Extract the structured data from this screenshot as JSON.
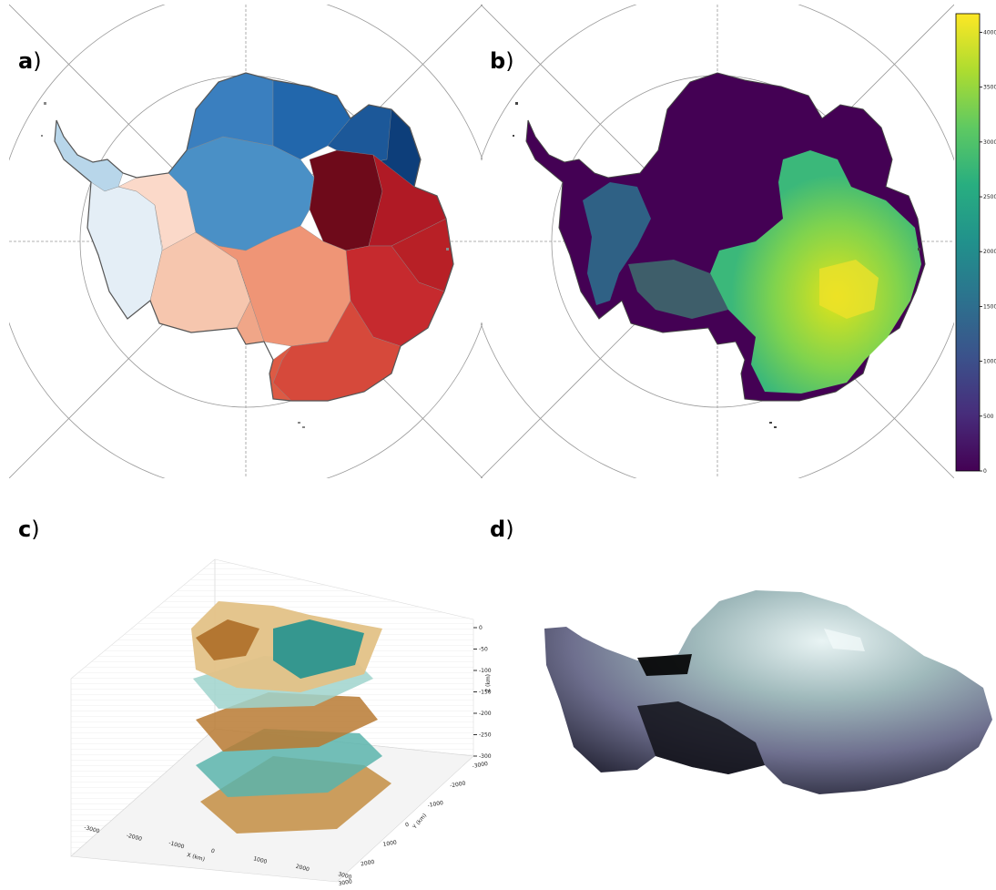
{
  "panels": {
    "a": {
      "letter": "a",
      "paren": ")"
    },
    "b": {
      "letter": "b",
      "paren": ")"
    },
    "c": {
      "letter": "c",
      "paren": ")"
    },
    "d": {
      "letter": "d",
      "paren": ")"
    }
  },
  "colorbar": {
    "ticks": [
      "0",
      "500",
      "1000",
      "1500",
      "2000",
      "2500",
      "3000",
      "3500",
      "4000"
    ],
    "colors": [
      "#440154",
      "#472d7b",
      "#3b528b",
      "#2c728e",
      "#21918c",
      "#28ae80",
      "#5ec962",
      "#addc30",
      "#fde725"
    ]
  },
  "plot3d": {
    "x_label": "X (km)",
    "y_label": "Y (km)",
    "z_label": "Z (km)",
    "x_ticks": [
      "-3000",
      "-2000",
      "-1000",
      "0",
      "1000",
      "2000",
      "3000"
    ],
    "y_ticks": [
      "-3000",
      "-2000",
      "-1000",
      "0",
      "1000",
      "2000",
      "3000"
    ],
    "z_ticks": [
      "0",
      "-50",
      "-100",
      "-150",
      "-200",
      "-250",
      "-300"
    ]
  },
  "colors": {
    "blue_dark": "#08306b",
    "blue_mid": "#2171b5",
    "red_dark": "#67000d",
    "red_mid": "#cb181d",
    "salmon": "#f09b7a",
    "teal": "#2a9d8f",
    "brown": "#a6611a"
  }
}
